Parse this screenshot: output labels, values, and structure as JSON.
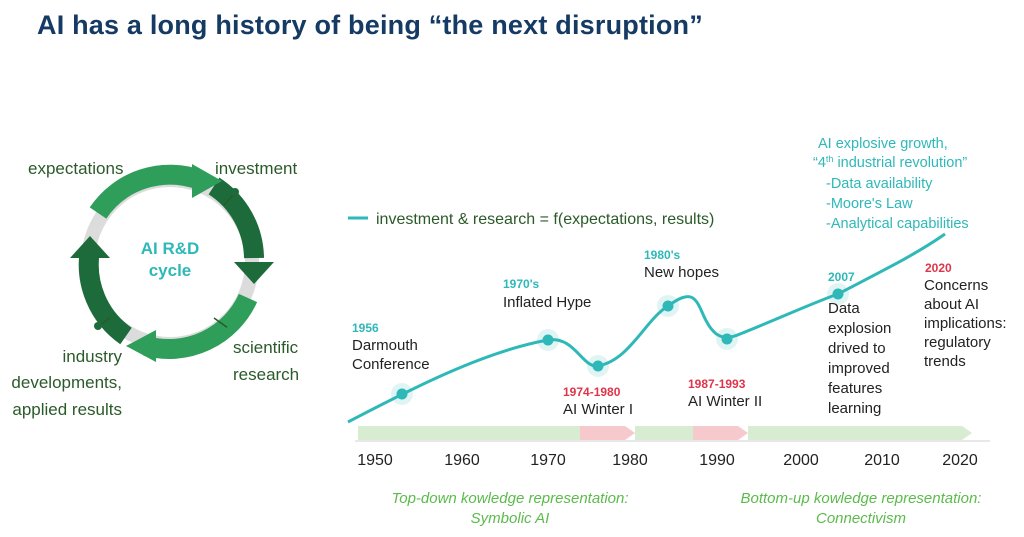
{
  "title": "AI has a long history of being “the next disruption”",
  "cycle": {
    "center": [
      "AI R&D",
      "cycle"
    ],
    "labels": {
      "expectations": "expectations",
      "investment": "investment",
      "scientific": [
        "scientific",
        "research"
      ],
      "industry": [
        "industry",
        "developments,",
        "applied results"
      ]
    }
  },
  "timeline": {
    "legend": "investment & research = f(expectations, results)",
    "decades": [
      "1950",
      "1960",
      "1970",
      "1980",
      "1990",
      "2000",
      "2010",
      "2020"
    ],
    "events": [
      {
        "year": "1956",
        "lines": [
          "Darmouth",
          "Conference"
        ]
      },
      {
        "year": "1970's",
        "lines": [
          "Inflated Hype"
        ]
      },
      {
        "year": "1974-1980",
        "lines": [
          "AI Winter I"
        ]
      },
      {
        "year": "1980's",
        "lines": [
          "New hopes"
        ]
      },
      {
        "year": "1987-1993",
        "lines": [
          "AI Winter II"
        ]
      },
      {
        "year": "2007",
        "lines": [
          "Data",
          "explosion",
          "drived to",
          "improved",
          "features",
          "learning"
        ]
      },
      {
        "year": "2020",
        "lines": [
          "Concerns",
          "about AI",
          "implications:",
          "regulatory",
          "trends"
        ]
      }
    ],
    "growth": {
      "line1": "AI explosive growth,",
      "line2_pre": "“4",
      "line2_sup": "th",
      "line2_post": " industrial revolution”",
      "items": [
        "-Data availability",
        "-Moore's Law",
        "-Analytical capabilities"
      ]
    },
    "eras": [
      {
        "lines": [
          "Top-down kowledge representation:",
          "Symbolic AI"
        ]
      },
      {
        "lines": [
          "Bottom-up kowledge representation:",
          "Connectivism"
        ]
      }
    ]
  },
  "colors": {
    "teal": "#2fb8b8",
    "red": "#e0344a",
    "dark_green": "#1d6b3a",
    "green": "#2e9e5a",
    "light_green": "#d8ecd2",
    "light_red": "#f6c9cc",
    "navy": "#153a63"
  }
}
